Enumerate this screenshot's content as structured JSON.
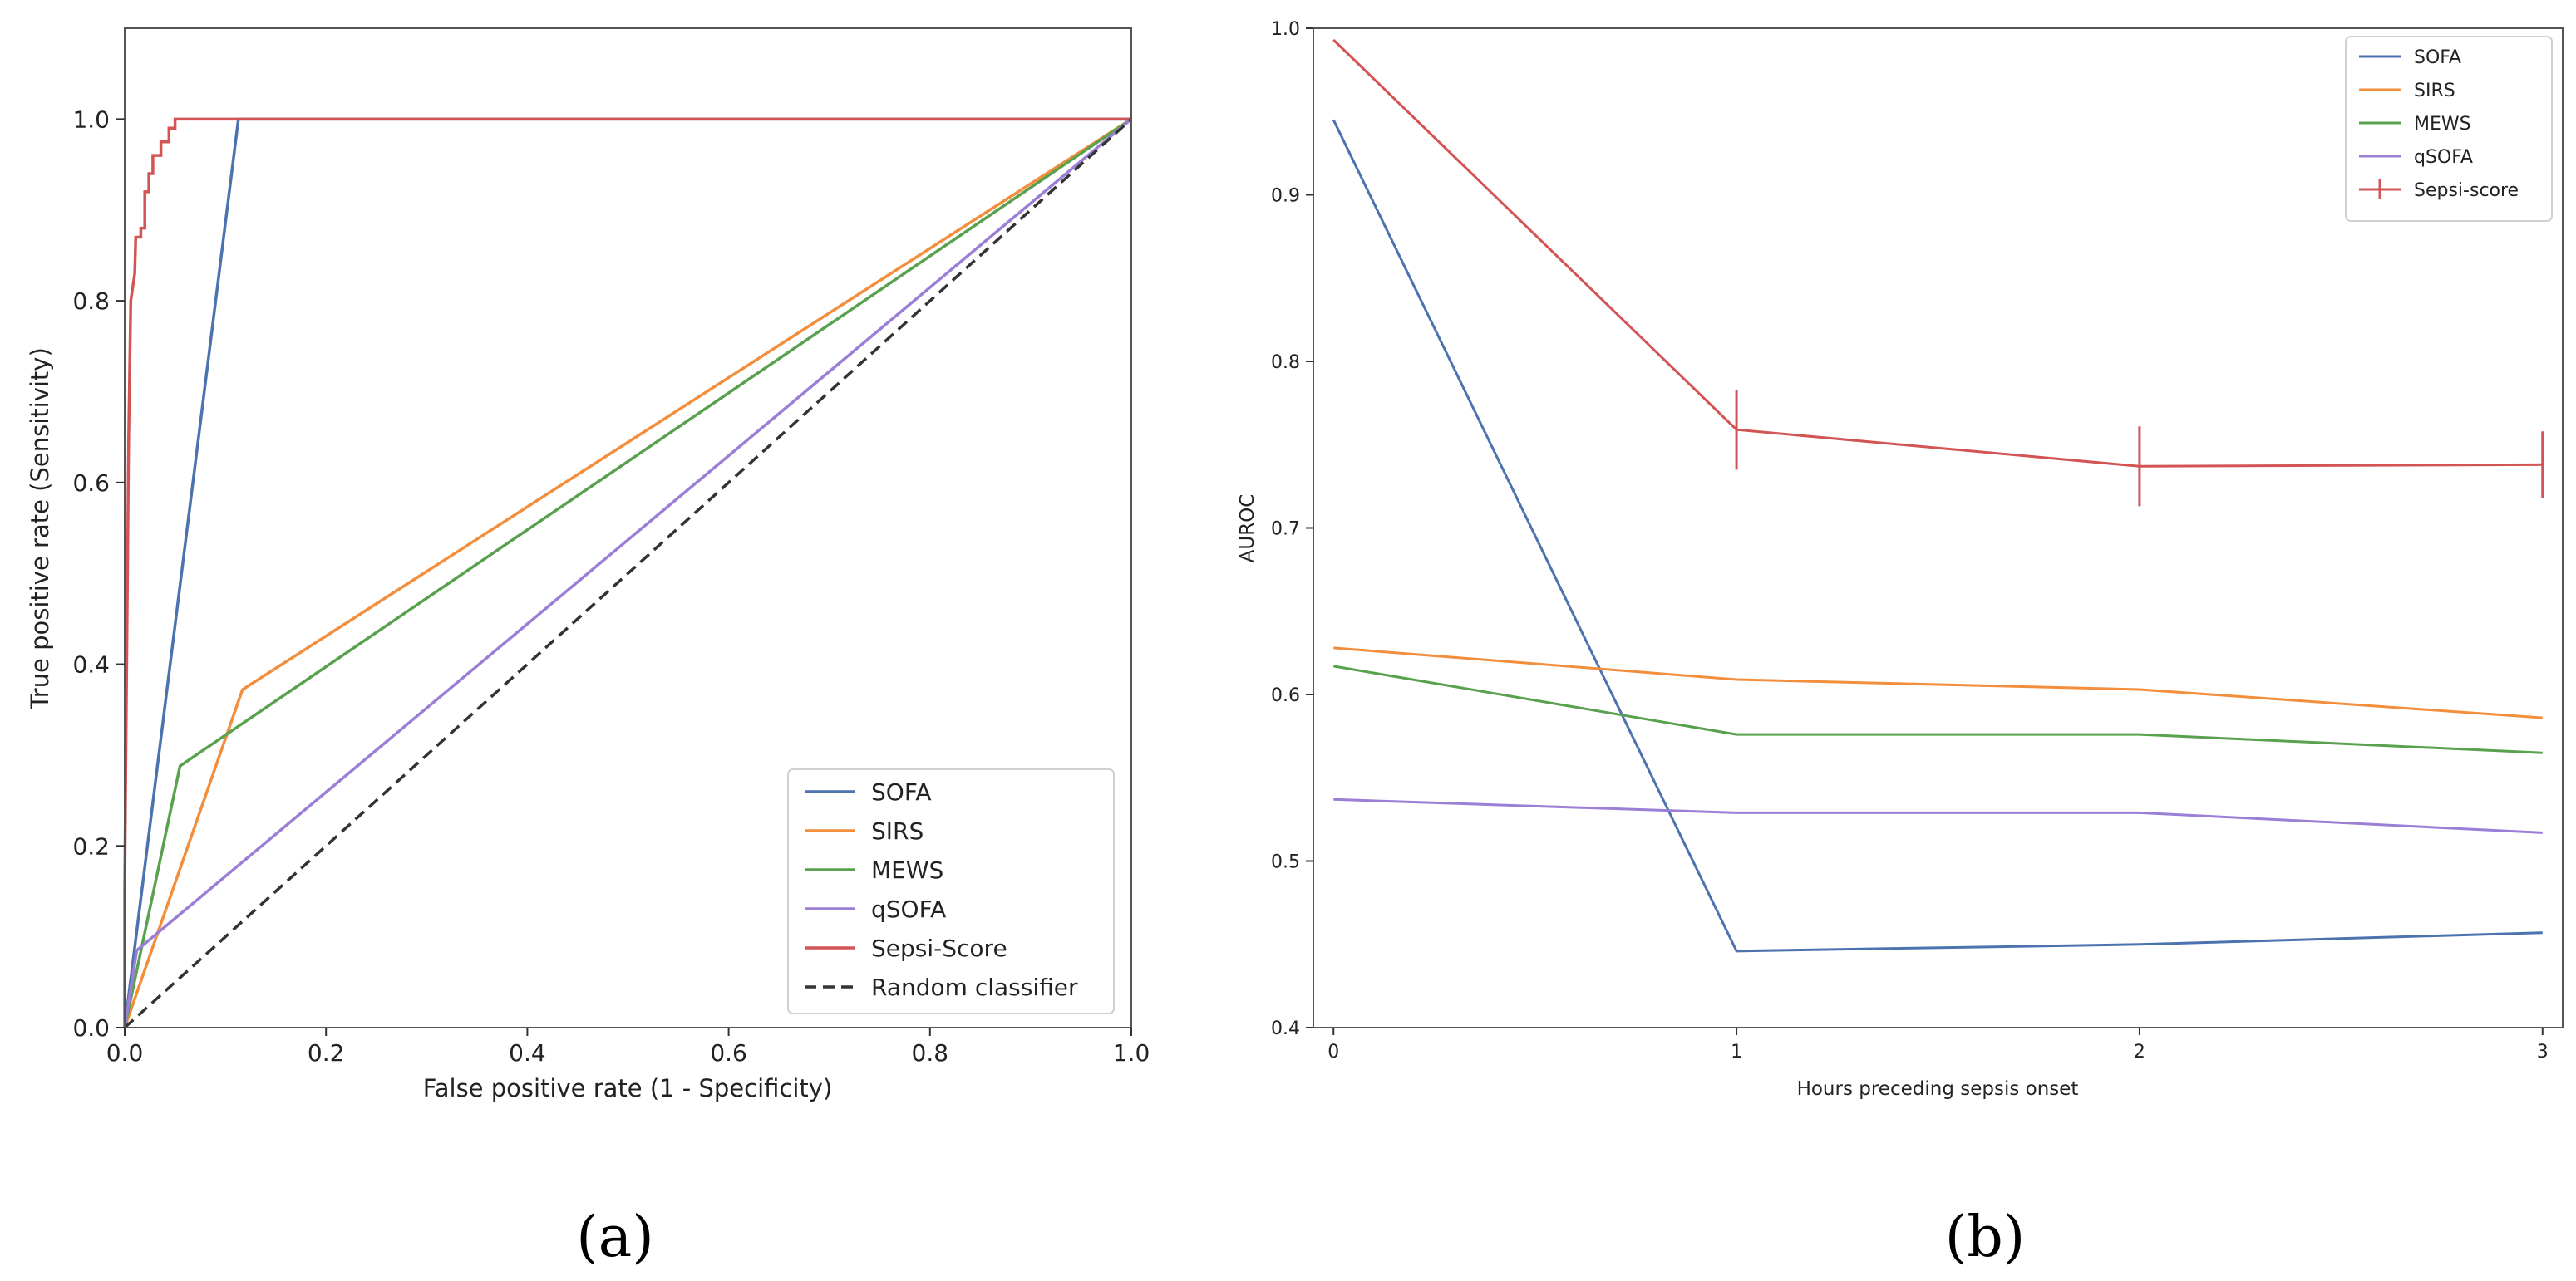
{
  "chart_data": [
    {
      "panel": "a",
      "caption": "(a)",
      "type": "line",
      "title": "",
      "xlabel": "False positive rate (1 - Specificity)",
      "ylabel": "True positive rate (Sensitivity)",
      "xlim": [
        0,
        1.0
      ],
      "ylim": [
        0,
        1.1
      ],
      "xticks": [
        0,
        0.2,
        0.4,
        0.6,
        0.8,
        1.0
      ],
      "yticks": [
        0,
        0.2,
        0.4,
        0.6,
        0.8,
        1.0
      ],
      "xtick_labels": [
        "0.0",
        "0.2",
        "0.4",
        "0.6",
        "0.8",
        "1.0"
      ],
      "ytick_labels": [
        "0.0",
        "0.2",
        "0.4",
        "0.6",
        "0.8",
        "1.0"
      ],
      "grid": false,
      "legend": "lower right",
      "series": [
        {
          "name": "SOFA",
          "color": "#4c72b0",
          "dash": "solid",
          "points": [
            [
              0,
              0
            ],
            [
              0.113,
              1.0
            ],
            [
              1.0,
              1.0
            ]
          ]
        },
        {
          "name": "SIRS",
          "color": "#f28e3c",
          "dash": "solid",
          "points": [
            [
              0,
              0
            ],
            [
              0.117,
              0.372
            ],
            [
              1.0,
              1.0
            ]
          ]
        },
        {
          "name": "MEWS",
          "color": "#59a14f",
          "dash": "solid",
          "points": [
            [
              0,
              0
            ],
            [
              0.055,
              0.288
            ],
            [
              1.0,
              1.0
            ]
          ]
        },
        {
          "name": "qSOFA",
          "color": "#9b7ed6",
          "dash": "solid",
          "points": [
            [
              0,
              0
            ],
            [
              0.012,
              0.085
            ],
            [
              1.0,
              1.0
            ]
          ]
        },
        {
          "name": "Sepsi-Score",
          "color": "#d35454",
          "dash": "solid",
          "points": [
            [
              0,
              0
            ],
            [
              0,
              0.15
            ],
            [
              0.002,
              0.4
            ],
            [
              0.004,
              0.65
            ],
            [
              0.006,
              0.8
            ],
            [
              0.01,
              0.83
            ],
            [
              0.011,
              0.87
            ],
            [
              0.016,
              0.87
            ],
            [
              0.016,
              0.88
            ],
            [
              0.02,
              0.88
            ],
            [
              0.02,
              0.92
            ],
            [
              0.024,
              0.92
            ],
            [
              0.024,
              0.94
            ],
            [
              0.028,
              0.94
            ],
            [
              0.028,
              0.96
            ],
            [
              0.036,
              0.96
            ],
            [
              0.036,
              0.975
            ],
            [
              0.044,
              0.975
            ],
            [
              0.044,
              0.99
            ],
            [
              0.05,
              0.99
            ],
            [
              0.05,
              1.0
            ],
            [
              1.0,
              1.0
            ]
          ]
        },
        {
          "name": "Random classifier",
          "color": "#333333",
          "dash": "dashed",
          "points": [
            [
              0,
              0
            ],
            [
              1.0,
              1.0
            ]
          ]
        }
      ]
    },
    {
      "panel": "b",
      "caption": "(b)",
      "type": "line",
      "title": "",
      "xlabel": "Hours preceding sepsis onset",
      "ylabel": "AUROC",
      "x": [
        0,
        1,
        2,
        3
      ],
      "xlim": [
        -0.05,
        3.05
      ],
      "ylim": [
        0.4,
        1.0
      ],
      "xticks": [
        0,
        1,
        2,
        3
      ],
      "yticks": [
        0.4,
        0.5,
        0.6,
        0.7,
        0.8,
        0.9,
        1.0
      ],
      "xtick_labels": [
        "0",
        "1",
        "2",
        "3"
      ],
      "ytick_labels": [
        "0.4",
        "0.5",
        "0.6",
        "0.7",
        "0.8",
        "0.9",
        "1.0"
      ],
      "grid": false,
      "legend": "upper right",
      "series": [
        {
          "name": "SOFA",
          "color": "#4c72b0",
          "values": [
            0.945,
            0.446,
            0.45,
            0.457
          ]
        },
        {
          "name": "SIRS",
          "color": "#f28e3c",
          "values": [
            0.628,
            0.609,
            0.603,
            0.586
          ]
        },
        {
          "name": "MEWS",
          "color": "#59a14f",
          "values": [
            0.617,
            0.576,
            0.576,
            0.565
          ]
        },
        {
          "name": "qSOFA",
          "color": "#9b7ed6",
          "values": [
            0.537,
            0.529,
            0.529,
            0.517
          ]
        },
        {
          "name": "Sepsi-score",
          "color": "#d35454",
          "values": [
            0.993,
            0.759,
            0.737,
            0.738
          ],
          "errors": [
            0,
            0.012,
            0.012,
            0.01
          ]
        }
      ]
    }
  ]
}
